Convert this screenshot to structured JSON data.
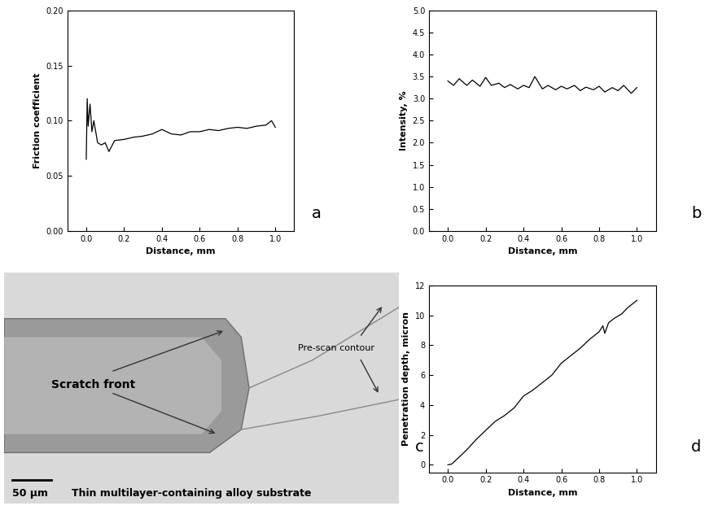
{
  "chart_data": [
    {
      "type": "line",
      "panel_label": "a",
      "x_label": "Distance, mm",
      "y_label": "Friction coefficient",
      "xlim": [
        -0.1,
        1.1
      ],
      "xticks": [
        0.0,
        0.2,
        0.4,
        0.6,
        0.8,
        1.0
      ],
      "ylim": [
        0.0,
        0.2
      ],
      "yticks": [
        {
          "value": 0.0,
          "label": "0.00"
        },
        {
          "value": 0.05,
          "label": "0.05"
        },
        {
          "value": 0.1,
          "label": "0.10"
        },
        {
          "value": 0.15,
          "label": "0.15"
        },
        {
          "value": 0.2,
          "label": "0.20"
        }
      ],
      "series": [
        {
          "color": "#000000",
          "x": [
            0.0,
            0.005,
            0.01,
            0.02,
            0.03,
            0.04,
            0.06,
            0.08,
            0.1,
            0.12,
            0.15,
            0.2,
            0.25,
            0.3,
            0.35,
            0.4,
            0.45,
            0.5,
            0.55,
            0.6,
            0.65,
            0.7,
            0.75,
            0.8,
            0.85,
            0.9,
            0.95,
            0.98,
            1.0
          ],
          "values": [
            0.065,
            0.12,
            0.095,
            0.115,
            0.09,
            0.1,
            0.08,
            0.078,
            0.08,
            0.072,
            0.082,
            0.083,
            0.085,
            0.086,
            0.088,
            0.092,
            0.088,
            0.087,
            0.09,
            0.09,
            0.092,
            0.091,
            0.093,
            0.094,
            0.093,
            0.095,
            0.096,
            0.1,
            0.094
          ]
        }
      ]
    },
    {
      "type": "line",
      "panel_label": "b",
      "x_label": "Distance, mm",
      "y_label": "Intensity, %",
      "xlim": [
        -0.1,
        1.1
      ],
      "xticks": [
        0.0,
        0.2,
        0.4,
        0.6,
        0.8,
        1.0
      ],
      "ylim": [
        0.0,
        5.0
      ],
      "yticks": [
        0.0,
        0.5,
        1.0,
        1.5,
        2.0,
        2.5,
        3.0,
        3.5,
        4.0,
        4.5,
        5.0
      ],
      "series": [
        {
          "color": "#000000",
          "x": [
            0.0,
            0.03,
            0.06,
            0.1,
            0.13,
            0.17,
            0.2,
            0.23,
            0.27,
            0.3,
            0.33,
            0.37,
            0.4,
            0.43,
            0.46,
            0.5,
            0.53,
            0.57,
            0.6,
            0.63,
            0.67,
            0.7,
            0.73,
            0.77,
            0.8,
            0.83,
            0.87,
            0.9,
            0.93,
            0.97,
            1.0
          ],
          "values": [
            3.4,
            3.3,
            3.45,
            3.3,
            3.42,
            3.28,
            3.48,
            3.3,
            3.35,
            3.25,
            3.32,
            3.22,
            3.3,
            3.25,
            3.5,
            3.22,
            3.3,
            3.2,
            3.28,
            3.22,
            3.3,
            3.18,
            3.26,
            3.2,
            3.28,
            3.15,
            3.25,
            3.18,
            3.3,
            3.12,
            3.25
          ]
        }
      ]
    },
    {
      "type": "line",
      "panel_label": "d",
      "x_label": "Distance, mm",
      "y_label": "Penetration depth, micron",
      "xlim": [
        -0.1,
        1.1
      ],
      "xticks": [
        0.0,
        0.2,
        0.4,
        0.6,
        0.8,
        1.0
      ],
      "ylim": [
        -0.5,
        12
      ],
      "yticks": [
        0,
        2,
        4,
        6,
        8,
        10,
        12
      ],
      "series": [
        {
          "color": "#000000",
          "x": [
            0.0,
            0.02,
            0.05,
            0.1,
            0.15,
            0.2,
            0.25,
            0.3,
            0.35,
            0.4,
            0.45,
            0.5,
            0.55,
            0.6,
            0.65,
            0.7,
            0.75,
            0.8,
            0.82,
            0.83,
            0.85,
            0.88,
            0.92,
            0.95,
            1.0
          ],
          "values": [
            0.0,
            0.05,
            0.4,
            1.0,
            1.7,
            2.3,
            2.9,
            3.3,
            3.8,
            4.6,
            5.0,
            5.5,
            6.0,
            6.8,
            7.3,
            7.8,
            8.4,
            8.9,
            9.3,
            8.8,
            9.5,
            9.8,
            10.1,
            10.5,
            11.0
          ]
        }
      ]
    }
  ],
  "micrograph": {
    "panel_label": "c",
    "scratch_front_label": "Scratch front",
    "pre_scan_label": "Pre-scan contour",
    "scale_bar_label": "50 µm",
    "caption": "Thin multilayer-containing alloy substrate"
  }
}
